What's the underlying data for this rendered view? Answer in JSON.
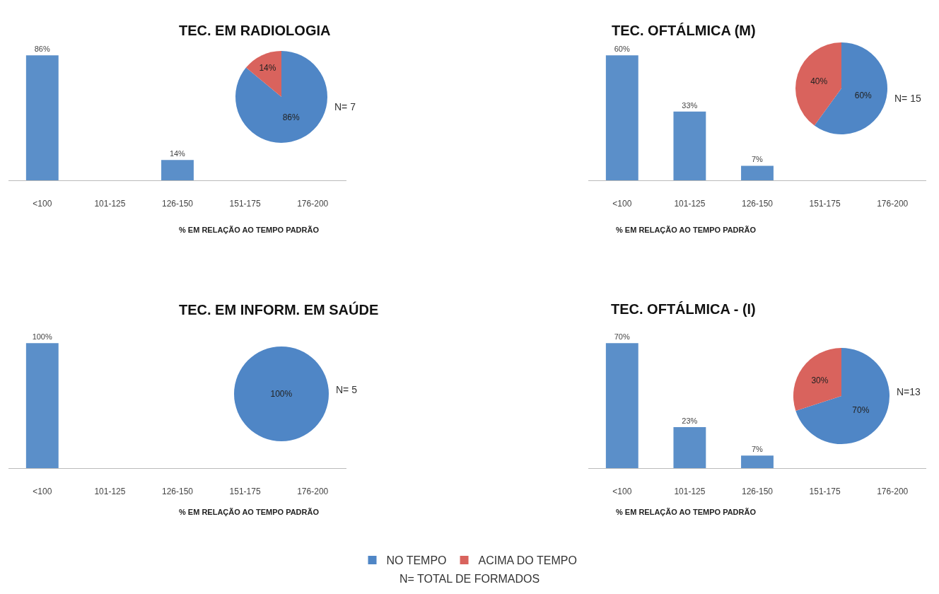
{
  "chart_data": [
    {
      "type": "bar",
      "title": "TEC. EM RADIOLOGIA",
      "xlabel": "% EM RELAÇÃO AO TEMPO PADRÃO",
      "categories": [
        "<100",
        "101-125",
        "126-150",
        "151-175",
        "176-200"
      ],
      "values": [
        86,
        0,
        14,
        0,
        0
      ],
      "value_labels": [
        "86%",
        null,
        "14%",
        null,
        null
      ],
      "color": "#5b8fc9",
      "tick_labels": "x"
    },
    {
      "type": "pie",
      "categories": [
        "NO TEMPO",
        "ACIMA DO TEMPO"
      ],
      "values": [
        86,
        14
      ],
      "value_labels": [
        "86%",
        "14%"
      ],
      "colors": [
        "#4f86c6",
        "#d9635d"
      ],
      "annotations": [
        "N= 7"
      ],
      "legend": "bottom"
    },
    {
      "type": "bar",
      "title": "TEC. OFTÁLMICA (M)",
      "xlabel": "% EM RELAÇÃO AO TEMPO PADRÃO",
      "categories": [
        "<100",
        "101-125",
        "126-150",
        "151-175",
        "176-200"
      ],
      "values": [
        60,
        33,
        7,
        0,
        0
      ],
      "value_labels": [
        "60%",
        "33%",
        "7%",
        null,
        null
      ],
      "color": "#5b8fc9",
      "tick_labels": "x"
    },
    {
      "type": "pie",
      "values": [
        60,
        40
      ],
      "value_labels": [
        "60%",
        "40%"
      ],
      "colors": [
        "#4f86c6",
        "#d9635d"
      ],
      "annotations": [
        "N= 15"
      ]
    },
    {
      "type": "bar",
      "title": "TEC. EM INFORM. EM SAÚDE",
      "xlabel": "% EM RELAÇÃO AO TEMPO PADRÃO",
      "categories": [
        "<100",
        "101-125",
        "126-150",
        "151-175",
        "176-200"
      ],
      "values": [
        100,
        0,
        0,
        0,
        0
      ],
      "value_labels": [
        "100%",
        null,
        null,
        null,
        null
      ],
      "color": "#5b8fc9",
      "tick_labels": "x"
    },
    {
      "type": "pie",
      "values": [
        100,
        0
      ],
      "value_labels": [
        "100%",
        null
      ],
      "colors": [
        "#4f86c6",
        "#d9635d"
      ],
      "annotations": [
        "N= 5"
      ]
    },
    {
      "type": "bar",
      "title": "TEC. OFTÁLMICA - (I)",
      "xlabel": "% EM RELAÇÃO AO TEMPO PADRÃO",
      "categories": [
        "<100",
        "101-125",
        "126-150",
        "151-175",
        "176-200"
      ],
      "values": [
        70,
        23,
        7,
        0,
        0
      ],
      "value_labels": [
        "70%",
        "23%",
        "7%",
        null,
        null
      ],
      "color": "#5b8fc9",
      "tick_labels": "x"
    },
    {
      "type": "pie",
      "values": [
        70,
        30
      ],
      "value_labels": [
        "70%",
        "30%"
      ],
      "colors": [
        "#4f86c6",
        "#d9635d"
      ],
      "annotations": [
        "N=13",
        "N= TOTAL DE FORMADOS"
      ]
    }
  ]
}
